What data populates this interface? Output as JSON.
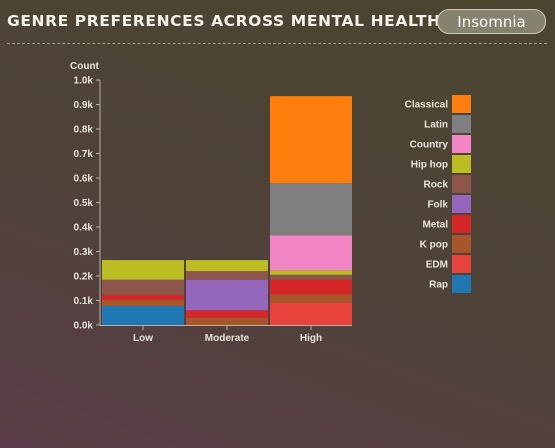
{
  "header": {
    "title": "GENRE PREFERENCES ACROSS MENTAL HEALTH",
    "filter_label": "Insomnia"
  },
  "chart_data": {
    "type": "bar",
    "stacked": true,
    "ylabel": "Count",
    "ylim": [
      0,
      1000
    ],
    "yticks": [
      0,
      100,
      200,
      300,
      400,
      500,
      600,
      700,
      800,
      900,
      1000
    ],
    "ytick_labels": [
      "0.0k",
      "0.1k",
      "0.2k",
      "0.3k",
      "0.4k",
      "0.5k",
      "0.6k",
      "0.7k",
      "0.8k",
      "0.9k",
      "1.0k"
    ],
    "categories": [
      "Low",
      "Moderate",
      "High"
    ],
    "legend_position": "right",
    "series": [
      {
        "name": "Rap",
        "color": "#1f77b4",
        "values": [
          78,
          0,
          0
        ]
      },
      {
        "name": "EDM",
        "color": "#e8433a",
        "values": [
          0,
          0,
          90
        ]
      },
      {
        "name": "K pop",
        "color": "#a8552a",
        "values": [
          25,
          30,
          35
        ]
      },
      {
        "name": "Metal",
        "color": "#d62728",
        "values": [
          20,
          30,
          60
        ]
      },
      {
        "name": "Folk",
        "color": "#9467bd",
        "values": [
          0,
          125,
          0
        ]
      },
      {
        "name": "Rock",
        "color": "#8c564b",
        "values": [
          62,
          35,
          20
        ]
      },
      {
        "name": "Hip hop",
        "color": "#bcbd22",
        "values": [
          80,
          45,
          18
        ]
      },
      {
        "name": "Country",
        "color": "#f286c4",
        "values": [
          0,
          0,
          143
        ]
      },
      {
        "name": "Latin",
        "color": "#7f7f7f",
        "values": [
          0,
          0,
          213
        ]
      },
      {
        "name": "Classical",
        "color": "#ff7f0e",
        "values": [
          0,
          0,
          355
        ]
      }
    ]
  }
}
